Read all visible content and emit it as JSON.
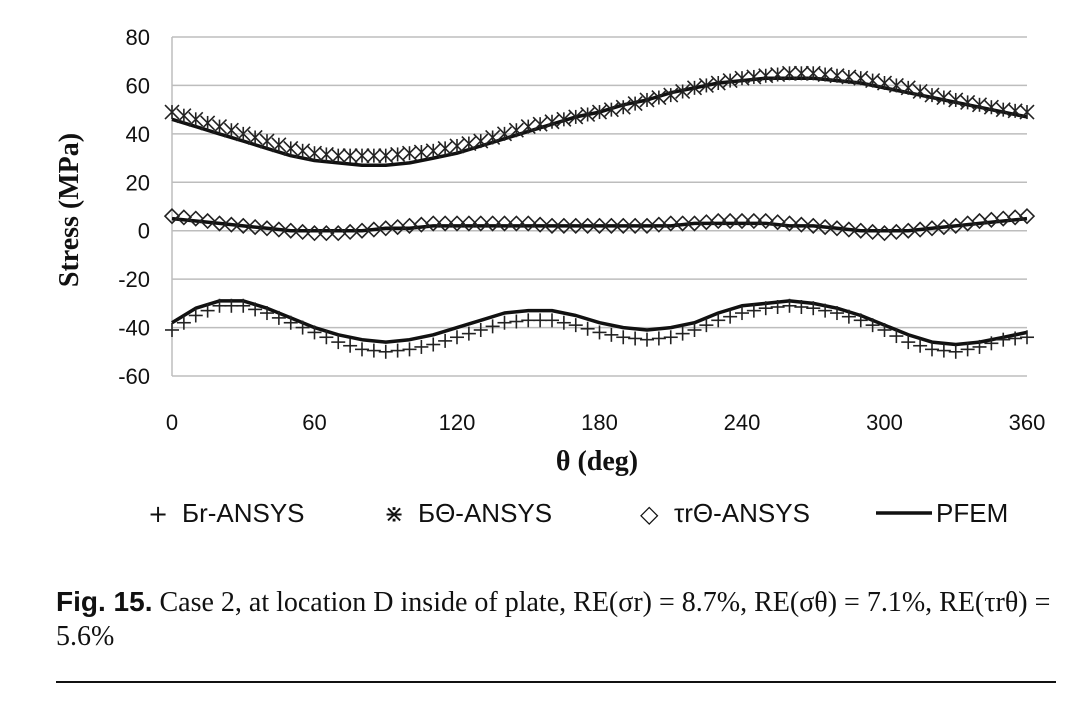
{
  "chart_data": {
    "type": "scatter",
    "title": "",
    "xlabel": "θ (deg)",
    "ylabel": "Stress (MPa)",
    "xlim": [
      0,
      360
    ],
    "ylim": [
      -60,
      80
    ],
    "xticks": [
      "0",
      "60",
      "120",
      "180",
      "240",
      "300",
      "360"
    ],
    "yticks": [
      "80",
      "60",
      "40",
      "20",
      "0",
      "-20",
      "-40",
      "-60"
    ],
    "grid": "horizontal",
    "legend_position": "bottom",
    "x": [
      0,
      10,
      20,
      30,
      40,
      50,
      60,
      70,
      80,
      90,
      100,
      110,
      120,
      130,
      140,
      150,
      160,
      170,
      180,
      190,
      200,
      210,
      220,
      230,
      240,
      250,
      260,
      270,
      280,
      290,
      300,
      310,
      320,
      330,
      340,
      350,
      360
    ],
    "series": [
      {
        "name": "σr-ANSYS",
        "style": "marker",
        "marker": "+",
        "values": [
          -41,
          -35,
          -31,
          -31,
          -34,
          -38,
          -42,
          -46,
          -49,
          -50,
          -49,
          -47,
          -44,
          -41,
          -38,
          -37,
          -37,
          -39,
          -42,
          -44,
          -45,
          -44,
          -41,
          -37,
          -34,
          -32,
          -31,
          -32,
          -34,
          -37,
          -41,
          -46,
          -49,
          -50,
          -48,
          -45,
          -44
        ]
      },
      {
        "name": "σθ-ANSYS",
        "style": "marker",
        "marker": "✳",
        "values": [
          49,
          46,
          43,
          40,
          37,
          34,
          32,
          31,
          31,
          31,
          32,
          33,
          35,
          37,
          40,
          43,
          45,
          47,
          49,
          51,
          54,
          56,
          59,
          61,
          63,
          64,
          65,
          65,
          64,
          63,
          61,
          59,
          56,
          54,
          52,
          50,
          49
        ]
      },
      {
        "name": "τrθ-ANSYS",
        "style": "marker",
        "marker": "◇",
        "values": [
          6,
          5,
          3,
          2,
          1,
          0,
          -1,
          -1,
          0,
          1,
          2,
          3,
          3,
          3,
          3,
          3,
          2,
          2,
          2,
          2,
          2,
          3,
          3,
          4,
          4,
          4,
          3,
          2,
          1,
          0,
          -1,
          0,
          1,
          2,
          4,
          5,
          6
        ]
      },
      {
        "name": "PFEM",
        "style": "line",
        "values": [
          46,
          43,
          40,
          37,
          34,
          31,
          29,
          28,
          27,
          27,
          28,
          30,
          32,
          35,
          38,
          41,
          44,
          47,
          49,
          52,
          54,
          57,
          59,
          61,
          62,
          63,
          63,
          63,
          62,
          61,
          59,
          57,
          55,
          53,
          51,
          49,
          47
        ]
      },
      {
        "name": "PFEM",
        "style": "line",
        "values": [
          5,
          4,
          3,
          2,
          1,
          0,
          0,
          0,
          0,
          1,
          1,
          2,
          2,
          2,
          2,
          2,
          2,
          2,
          2,
          2,
          2,
          2,
          3,
          3,
          3,
          3,
          2,
          2,
          1,
          0,
          0,
          0,
          1,
          2,
          3,
          4,
          5
        ]
      },
      {
        "name": "PFEM",
        "style": "line",
        "values": [
          -38,
          -32,
          -29,
          -29,
          -32,
          -36,
          -40,
          -43,
          -45,
          -46,
          -45,
          -43,
          -40,
          -37,
          -34,
          -33,
          -33,
          -35,
          -38,
          -40,
          -41,
          -40,
          -38,
          -34,
          -31,
          -30,
          -29,
          -30,
          -32,
          -35,
          -39,
          -43,
          -46,
          -47,
          -46,
          -44,
          -42
        ]
      }
    ]
  },
  "legend": [
    {
      "marker": "+",
      "label": "Бr-ANSYS"
    },
    {
      "marker": "⋇",
      "label": "БΘ-ANSYS"
    },
    {
      "marker": "◇",
      "label": "τrΘ-ANSYS"
    },
    {
      "marker": "line",
      "label": "PFEM"
    }
  ],
  "caption": {
    "fig_label": "Fig.  15.",
    "text": "Case 2, at location D inside of plate, RE(σr) = 8.7%, RE(σθ) = 7.1%, RE(τrθ) = 5.6%"
  }
}
